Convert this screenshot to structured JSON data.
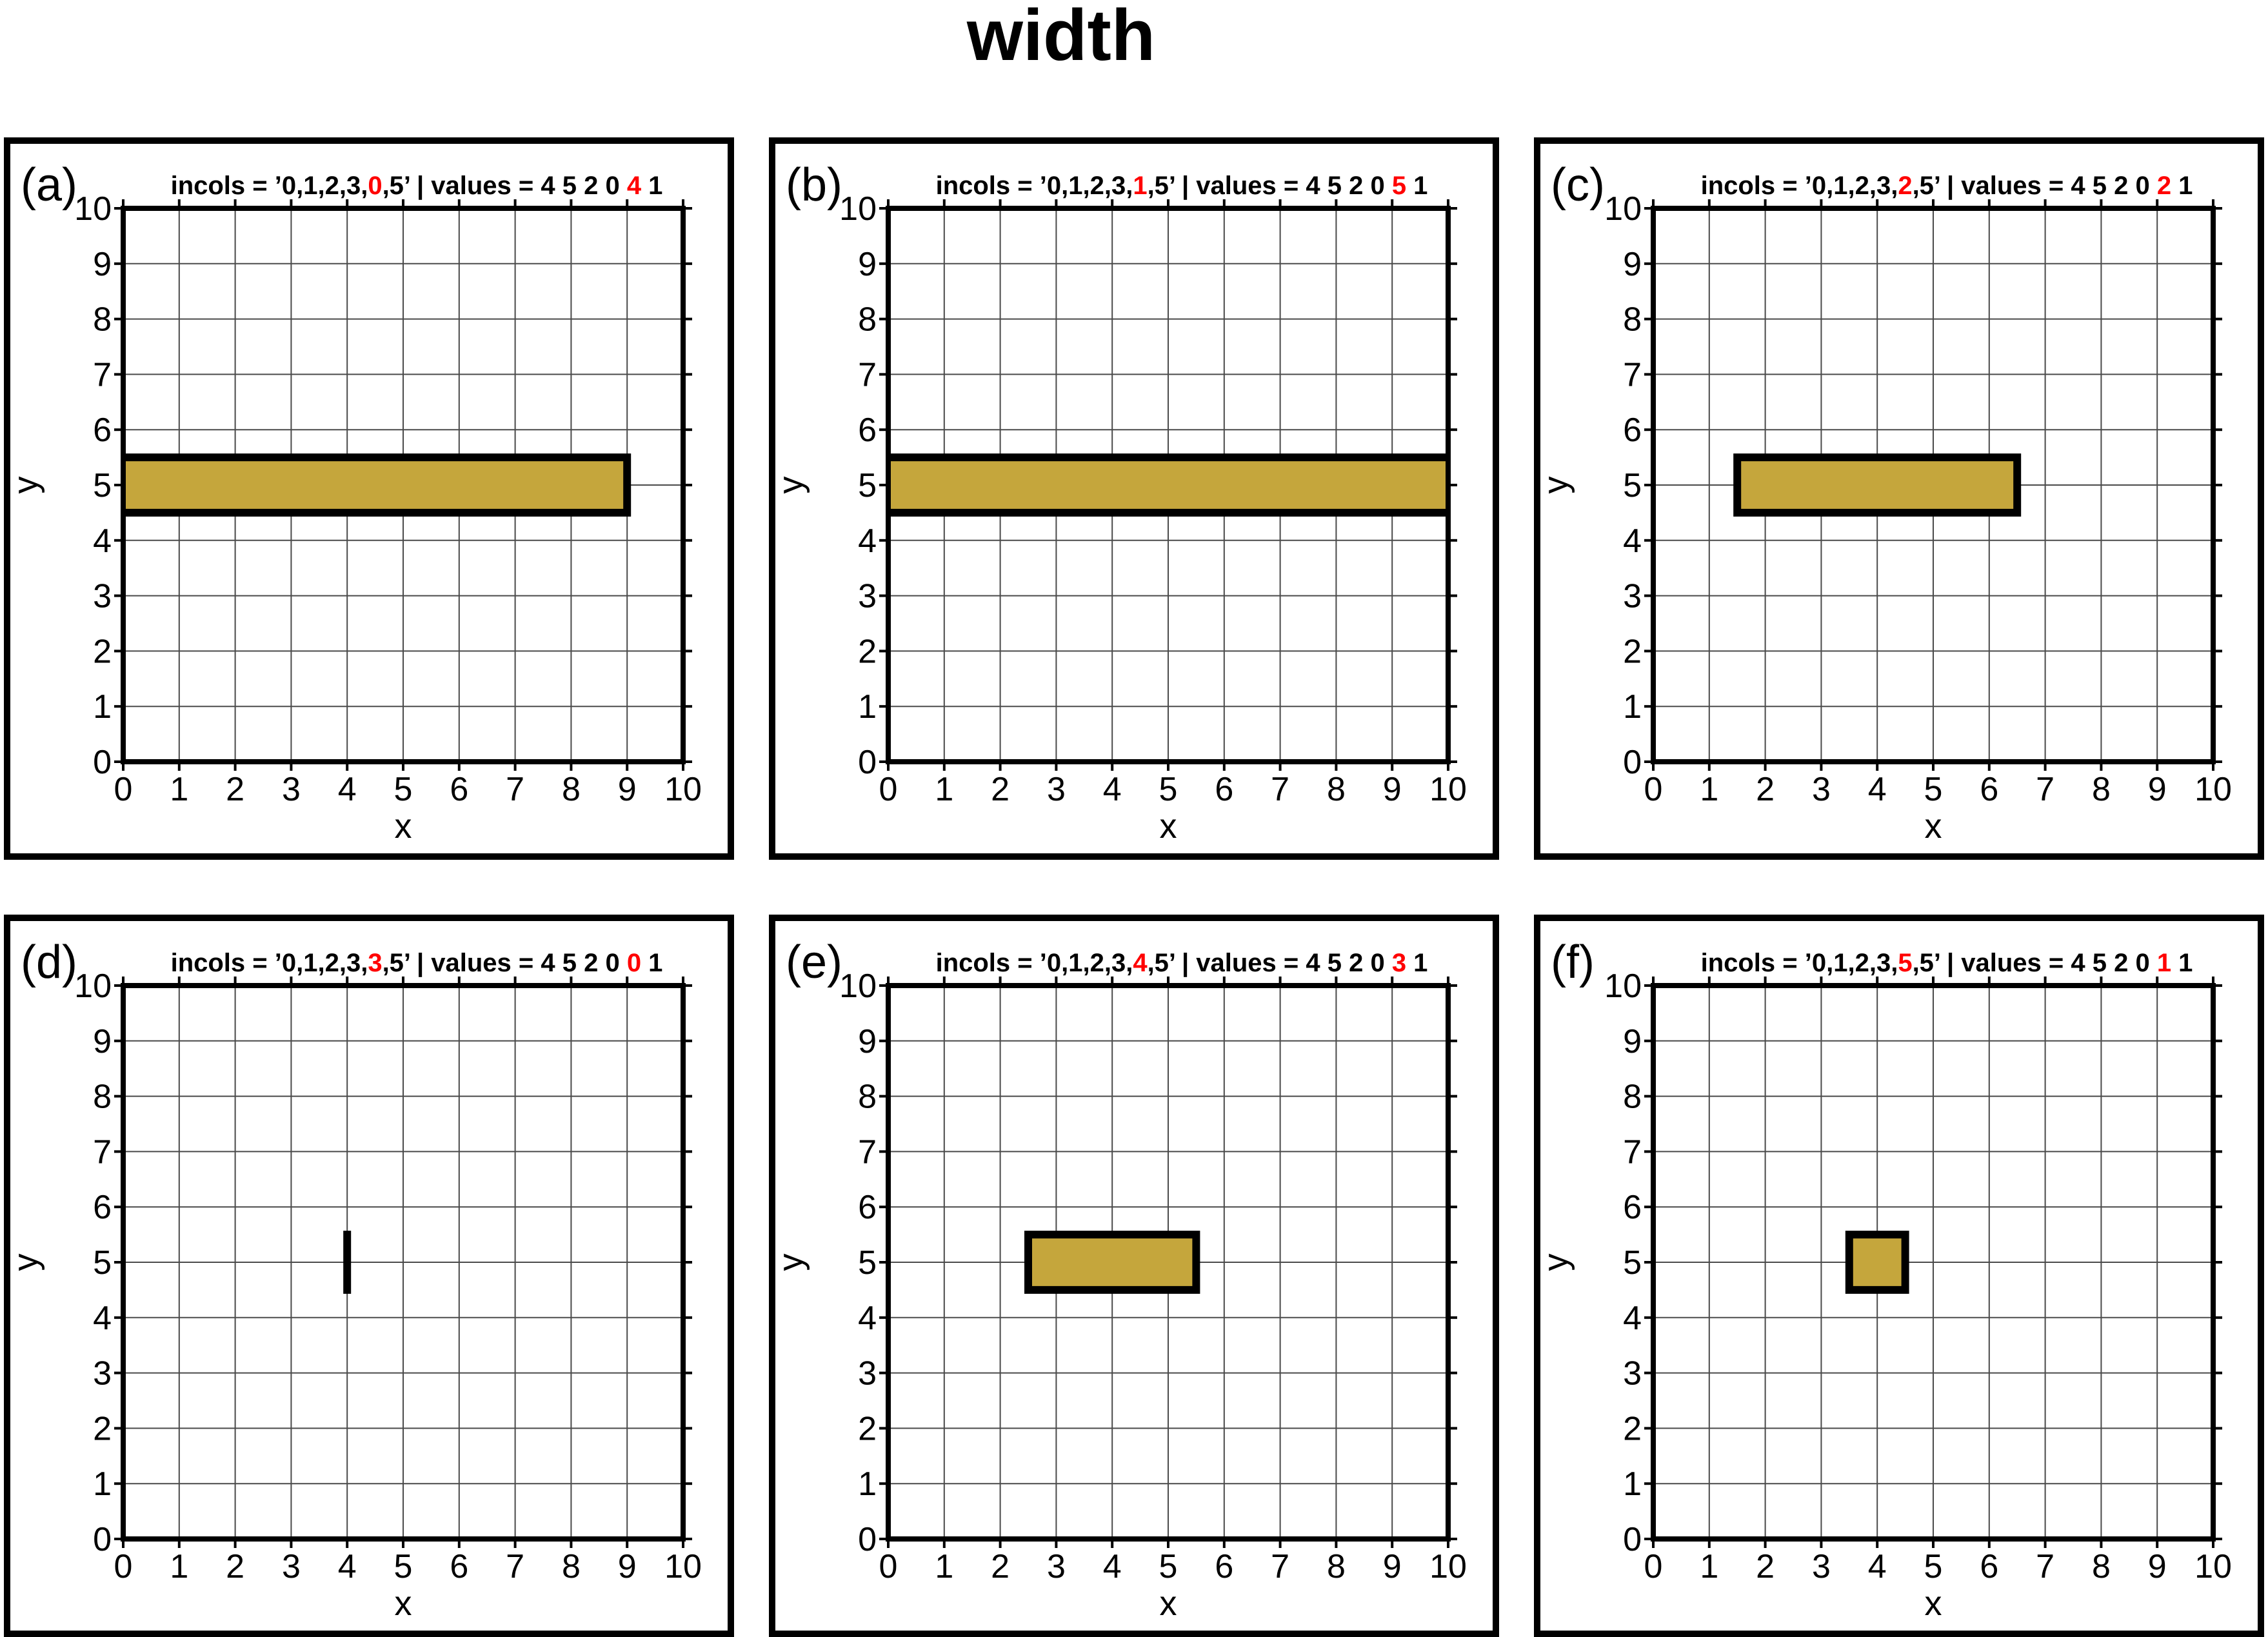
{
  "figure_title": "width",
  "colors": {
    "background": "#FFFFFF",
    "frame": "#000000",
    "grid_line": "#4A4A4A",
    "bar_fill": "#C5A63C",
    "bar_outline": "#000000",
    "highlight_red": "#FF0000"
  },
  "axes": {
    "xlabel": "x",
    "ylabel": "y",
    "xlim": [
      0,
      10
    ],
    "ylim": [
      0,
      10
    ],
    "xticks": [
      0,
      1,
      2,
      3,
      4,
      5,
      6,
      7,
      8,
      9,
      10
    ],
    "yticks": [
      0,
      1,
      2,
      3,
      4,
      5,
      6,
      7,
      8,
      9,
      10
    ],
    "grid": true
  },
  "chart_data": {
    "type": "rect",
    "description": "Six panels showing a filled rectangle centered at y=5 (y from 4.5 to 5.5) whose x-extent varies per panel",
    "panels": [
      {
        "label": "(a)",
        "incols": "0,1,2,3,0,5",
        "values": "4 5 2 0 4 1",
        "title_parts": {
          "pre": "incols = ’0,1,2,3,",
          "red_incol": "0",
          "mid": ",5’ | values = 4 5 2 0 ",
          "red_value": "4",
          "post": " 1"
        },
        "rect": {
          "x0": 0,
          "x1": 9,
          "y0": 4.5,
          "y1": 5.5,
          "flush_left": true,
          "flush_right": false
        }
      },
      {
        "label": "(b)",
        "incols": "0,1,2,3,1,5",
        "values": "4 5 2 0 5 1",
        "title_parts": {
          "pre": "incols = ’0,1,2,3,",
          "red_incol": "1",
          "mid": ",5’ | values = 4 5 2 0 ",
          "red_value": "5",
          "post": " 1"
        },
        "rect": {
          "x0": 0,
          "x1": 10,
          "y0": 4.5,
          "y1": 5.5,
          "flush_left": true,
          "flush_right": true
        }
      },
      {
        "label": "(c)",
        "incols": "0,1,2,3,2,5",
        "values": "4 5 2 0 2 1",
        "title_parts": {
          "pre": "incols = ’0,1,2,3,",
          "red_incol": "2",
          "mid": ",5’ | values = 4 5 2 0 ",
          "red_value": "2",
          "post": " 1"
        },
        "rect": {
          "x0": 1.5,
          "x1": 6.5,
          "y0": 4.5,
          "y1": 5.5,
          "flush_left": false,
          "flush_right": false
        }
      },
      {
        "label": "(d)",
        "incols": "0,1,2,3,3,5",
        "values": "4 5 2 0 0 1",
        "title_parts": {
          "pre": "incols = ’0,1,2,3,",
          "red_incol": "3",
          "mid": ",5’ | values = 4 5 2 0 ",
          "red_value": "0",
          "post": " 1"
        },
        "rect": {
          "x0": 4,
          "x1": 4,
          "y0": 4.5,
          "y1": 5.5,
          "flush_left": false,
          "flush_right": false
        }
      },
      {
        "label": "(e)",
        "incols": "0,1,2,3,4,5",
        "values": "4 5 2 0 3 1",
        "title_parts": {
          "pre": "incols = ’0,1,2,3,",
          "red_incol": "4",
          "mid": ",5’ | values = 4 5 2 0 ",
          "red_value": "3",
          "post": " 1"
        },
        "rect": {
          "x0": 2.5,
          "x1": 5.5,
          "y0": 4.5,
          "y1": 5.5,
          "flush_left": false,
          "flush_right": false
        }
      },
      {
        "label": "(f)",
        "incols": "0,1,2,3,5,5",
        "values": "4 5 2 0 1 1",
        "title_parts": {
          "pre": "incols = ’0,1,2,3,",
          "red_incol": "5",
          "mid": ",5’ | values = 4 5 2 0 ",
          "red_value": "1",
          "post": " 1"
        },
        "rect": {
          "x0": 3.5,
          "x1": 4.5,
          "y0": 4.5,
          "y1": 5.5,
          "flush_left": false,
          "flush_right": false
        }
      }
    ]
  }
}
